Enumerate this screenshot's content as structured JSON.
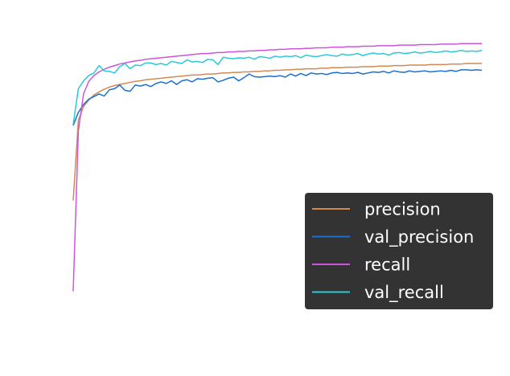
{
  "chart_data": {
    "type": "line",
    "title": "",
    "xlabel": "",
    "ylabel": "",
    "axes_visible": false,
    "grid": false,
    "legend_placement": "lower-right",
    "x": [
      1,
      2,
      3,
      4,
      5,
      6,
      7,
      8,
      9,
      10,
      11,
      12,
      13,
      14,
      15,
      16,
      17,
      18,
      19,
      20,
      21,
      22,
      23,
      24,
      25,
      26,
      27,
      28,
      29,
      30,
      31,
      32,
      33,
      34,
      35,
      36,
      37,
      38,
      39,
      40,
      41,
      42,
      43,
      44,
      45,
      46,
      47,
      48,
      49,
      50,
      51,
      52,
      53,
      54,
      55,
      56,
      57,
      58,
      59,
      60,
      61,
      62,
      63,
      64,
      65,
      66,
      67,
      68,
      69,
      70,
      71,
      72,
      73,
      74,
      75,
      76,
      77,
      78,
      79,
      80
    ],
    "xlim": [
      1,
      80
    ],
    "ylim": [
      0.4,
      1.0
    ],
    "series": [
      {
        "name": "precision",
        "color": "#d08a55",
        "values": [
          0.667,
          0.82,
          0.846,
          0.858,
          0.868,
          0.874,
          0.879,
          0.883,
          0.886,
          0.888,
          0.89,
          0.892,
          0.894,
          0.895,
          0.897,
          0.898,
          0.899,
          0.9,
          0.901,
          0.902,
          0.903,
          0.904,
          0.905,
          0.906,
          0.906,
          0.907,
          0.908,
          0.908,
          0.909,
          0.91,
          0.91,
          0.911,
          0.911,
          0.912,
          0.912,
          0.913,
          0.913,
          0.914,
          0.914,
          0.915,
          0.915,
          0.916,
          0.916,
          0.917,
          0.917,
          0.918,
          0.918,
          0.918,
          0.919,
          0.919,
          0.92,
          0.92,
          0.92,
          0.921,
          0.921,
          0.921,
          0.922,
          0.922,
          0.922,
          0.923,
          0.923,
          0.923,
          0.924,
          0.924,
          0.924,
          0.925,
          0.925,
          0.925,
          0.925,
          0.926,
          0.926,
          0.926,
          0.926,
          0.927,
          0.927,
          0.927,
          0.928,
          0.928,
          0.928,
          0.928
        ]
      },
      {
        "name": "val_precision",
        "color": "#1a6fd1",
        "values": [
          0.81,
          0.835,
          0.85,
          0.86,
          0.865,
          0.87,
          0.866,
          0.878,
          0.88,
          0.887,
          0.877,
          0.875,
          0.887,
          0.885,
          0.888,
          0.884,
          0.89,
          0.893,
          0.89,
          0.895,
          0.888,
          0.895,
          0.897,
          0.893,
          0.899,
          0.898,
          0.9,
          0.901,
          0.893,
          0.896,
          0.9,
          0.902,
          0.895,
          0.901,
          0.908,
          0.903,
          0.902,
          0.903,
          0.904,
          0.903,
          0.905,
          0.902,
          0.908,
          0.904,
          0.909,
          0.905,
          0.91,
          0.908,
          0.909,
          0.907,
          0.91,
          0.911,
          0.909,
          0.91,
          0.909,
          0.911,
          0.908,
          0.91,
          0.912,
          0.911,
          0.913,
          0.91,
          0.914,
          0.912,
          0.911,
          0.914,
          0.912,
          0.913,
          0.914,
          0.912,
          0.913,
          0.914,
          0.913,
          0.915,
          0.913,
          0.916,
          0.916,
          0.915,
          0.916,
          0.915
        ]
      },
      {
        "name": "recall",
        "color": "#cc55dd",
        "values": [
          0.494,
          0.8,
          0.87,
          0.894,
          0.905,
          0.912,
          0.917,
          0.921,
          0.924,
          0.927,
          0.929,
          0.931,
          0.933,
          0.934,
          0.936,
          0.937,
          0.938,
          0.939,
          0.94,
          0.941,
          0.942,
          0.943,
          0.944,
          0.945,
          0.946,
          0.947,
          0.947,
          0.948,
          0.949,
          0.949,
          0.95,
          0.95,
          0.951,
          0.951,
          0.952,
          0.952,
          0.953,
          0.953,
          0.954,
          0.954,
          0.955,
          0.955,
          0.956,
          0.956,
          0.956,
          0.957,
          0.957,
          0.958,
          0.958,
          0.958,
          0.959,
          0.959,
          0.959,
          0.96,
          0.96,
          0.96,
          0.961,
          0.961,
          0.961,
          0.962,
          0.962,
          0.962,
          0.962,
          0.963,
          0.963,
          0.963,
          0.963,
          0.964,
          0.964,
          0.964,
          0.964,
          0.965,
          0.965,
          0.965,
          0.965,
          0.966,
          0.966,
          0.966,
          0.966,
          0.966
        ]
      },
      {
        "name": "val_recall",
        "color": "#2bc8d6",
        "values": [
          0.812,
          0.88,
          0.895,
          0.905,
          0.91,
          0.924,
          0.914,
          0.913,
          0.91,
          0.922,
          0.928,
          0.918,
          0.925,
          0.924,
          0.929,
          0.929,
          0.926,
          0.928,
          0.925,
          0.932,
          0.93,
          0.928,
          0.935,
          0.931,
          0.932,
          0.93,
          0.936,
          0.935,
          0.926,
          0.94,
          0.938,
          0.937,
          0.939,
          0.938,
          0.94,
          0.936,
          0.941,
          0.94,
          0.938,
          0.942,
          0.94,
          0.942,
          0.941,
          0.943,
          0.939,
          0.944,
          0.942,
          0.941,
          0.943,
          0.945,
          0.943,
          0.942,
          0.946,
          0.944,
          0.945,
          0.947,
          0.943,
          0.946,
          0.948,
          0.946,
          0.947,
          0.944,
          0.948,
          0.949,
          0.947,
          0.948,
          0.95,
          0.948,
          0.949,
          0.951,
          0.949,
          0.95,
          0.952,
          0.95,
          0.951,
          0.953,
          0.951,
          0.952,
          0.951,
          0.953
        ]
      }
    ]
  }
}
